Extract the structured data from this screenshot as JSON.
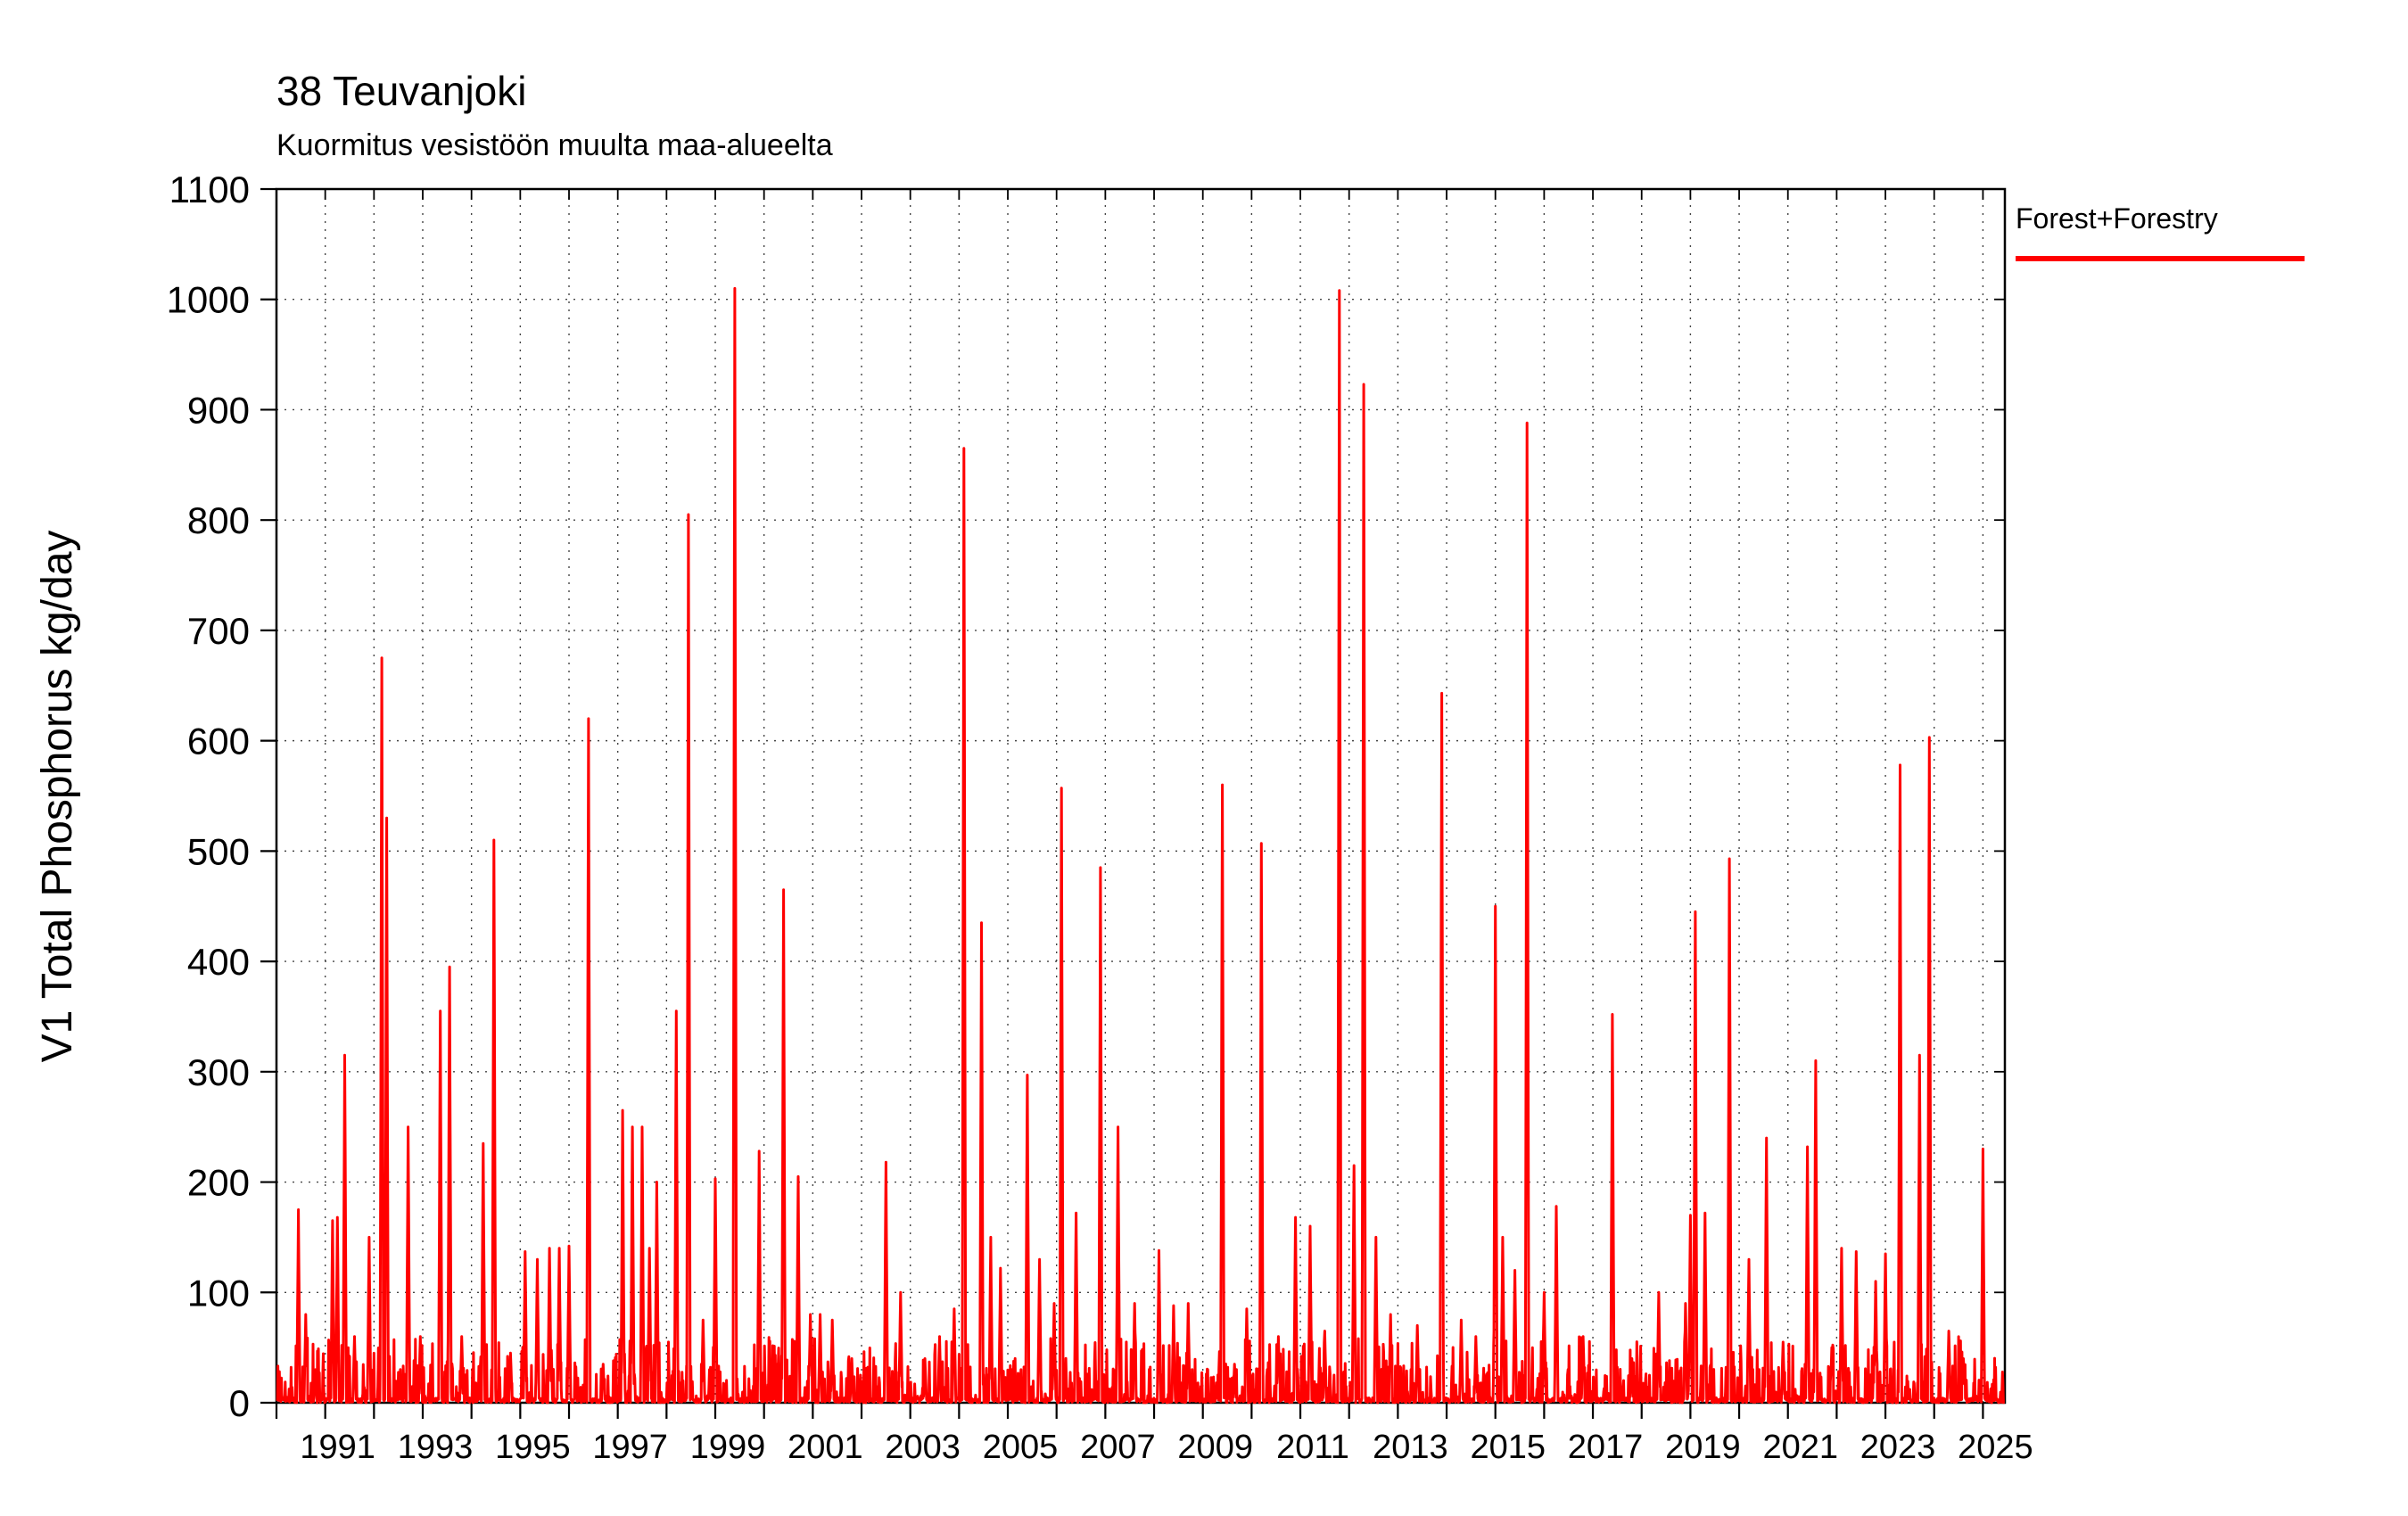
{
  "page": {
    "background": "#ffffff"
  },
  "chart_data": {
    "type": "line",
    "render_style": "impulse-spikes",
    "title": "38 Teuvanjoki",
    "subtitle": "Kuormitus vesistöön muulta maa-alueelta",
    "ylabel": "V1 Total Phosphorus kg/day",
    "xlabel": "",
    "xlim": [
      1990.0,
      2025.45
    ],
    "ylim": [
      0,
      1100
    ],
    "grid": true,
    "yticks": [
      0,
      100,
      200,
      300,
      400,
      500,
      600,
      700,
      800,
      900,
      1000,
      1100
    ],
    "xticks_minor_every": 1,
    "xticks_labeled": [
      1991,
      1993,
      1995,
      1997,
      1999,
      2001,
      2003,
      2005,
      2007,
      2009,
      2011,
      2013,
      2015,
      2017,
      2019,
      2021,
      2023,
      2025
    ],
    "legend": {
      "position": "top-right-outside",
      "entries": [
        {
          "label": "Forest+Forestry",
          "color": "#ff0000"
        }
      ]
    },
    "series": [
      {
        "name": "Forest+Forestry",
        "color": "#ff0000",
        "unit": "kg/day",
        "baseline_description": "dense daily values mostly between 0 and 40 kg/day",
        "peaks": [
          [
            1990.45,
            175
          ],
          [
            1990.6,
            80
          ],
          [
            1990.8,
            30
          ],
          [
            1991.15,
            165
          ],
          [
            1991.25,
            168
          ],
          [
            1991.4,
            315
          ],
          [
            1991.6,
            60
          ],
          [
            1991.9,
            150
          ],
          [
            1992.16,
            675
          ],
          [
            1992.26,
            530
          ],
          [
            1992.7,
            250
          ],
          [
            1992.95,
            60
          ],
          [
            1993.36,
            355
          ],
          [
            1993.55,
            395
          ],
          [
            1993.8,
            60
          ],
          [
            1994.24,
            235
          ],
          [
            1994.46,
            510
          ],
          [
            1994.8,
            45
          ],
          [
            1995.1,
            137
          ],
          [
            1995.35,
            130
          ],
          [
            1995.6,
            140
          ],
          [
            1995.8,
            140
          ],
          [
            1996.0,
            142
          ],
          [
            1996.4,
            620
          ],
          [
            1996.7,
            35
          ],
          [
            1997.1,
            265
          ],
          [
            1997.3,
            250
          ],
          [
            1997.5,
            250
          ],
          [
            1997.65,
            140
          ],
          [
            1997.8,
            200
          ],
          [
            1998.2,
            355
          ],
          [
            1998.45,
            805
          ],
          [
            1998.75,
            75
          ],
          [
            1999.0,
            203
          ],
          [
            1999.4,
            1010
          ],
          [
            1999.9,
            228
          ],
          [
            2000.4,
            465
          ],
          [
            2000.7,
            205
          ],
          [
            2000.95,
            80
          ],
          [
            2001.15,
            80
          ],
          [
            2001.4,
            75
          ],
          [
            2001.8,
            40
          ],
          [
            2002.5,
            218
          ],
          [
            2002.8,
            100
          ],
          [
            2003.3,
            40
          ],
          [
            2003.6,
            60
          ],
          [
            2003.9,
            85
          ],
          [
            2004.1,
            865
          ],
          [
            2004.46,
            435
          ],
          [
            2004.65,
            150
          ],
          [
            2004.85,
            122
          ],
          [
            2005.4,
            297
          ],
          [
            2005.65,
            130
          ],
          [
            2005.95,
            90
          ],
          [
            2006.1,
            557
          ],
          [
            2006.4,
            172
          ],
          [
            2006.9,
            485
          ],
          [
            2007.26,
            250
          ],
          [
            2007.6,
            90
          ],
          [
            2008.1,
            138
          ],
          [
            2008.4,
            88
          ],
          [
            2008.7,
            90
          ],
          [
            2009.4,
            560
          ],
          [
            2009.65,
            35
          ],
          [
            2009.9,
            85
          ],
          [
            2010.2,
            507
          ],
          [
            2010.55,
            60
          ],
          [
            2010.9,
            168
          ],
          [
            2011.2,
            160
          ],
          [
            2011.5,
            65
          ],
          [
            2011.8,
            1008
          ],
          [
            2012.1,
            215
          ],
          [
            2012.3,
            923
          ],
          [
            2012.55,
            150
          ],
          [
            2012.85,
            80
          ],
          [
            2013.4,
            70
          ],
          [
            2013.9,
            643
          ],
          [
            2014.3,
            75
          ],
          [
            2014.6,
            60
          ],
          [
            2015.0,
            450
          ],
          [
            2015.15,
            150
          ],
          [
            2015.4,
            120
          ],
          [
            2015.65,
            888
          ],
          [
            2016.0,
            100
          ],
          [
            2016.25,
            178
          ],
          [
            2016.8,
            60
          ],
          [
            2017.4,
            352
          ],
          [
            2017.8,
            40
          ],
          [
            2018.35,
            100
          ],
          [
            2018.9,
            90
          ],
          [
            2019.0,
            170
          ],
          [
            2019.1,
            445
          ],
          [
            2019.3,
            172
          ],
          [
            2019.8,
            493
          ],
          [
            2020.2,
            130
          ],
          [
            2020.56,
            240
          ],
          [
            2020.9,
            55
          ],
          [
            2021.4,
            232
          ],
          [
            2021.57,
            310
          ],
          [
            2021.9,
            50
          ],
          [
            2022.1,
            140
          ],
          [
            2022.4,
            137
          ],
          [
            2022.8,
            110
          ],
          [
            2023.0,
            135
          ],
          [
            2023.3,
            578
          ],
          [
            2023.7,
            315
          ],
          [
            2023.9,
            603
          ],
          [
            2024.3,
            65
          ],
          [
            2024.6,
            40
          ],
          [
            2025.0,
            230
          ]
        ]
      }
    ]
  }
}
